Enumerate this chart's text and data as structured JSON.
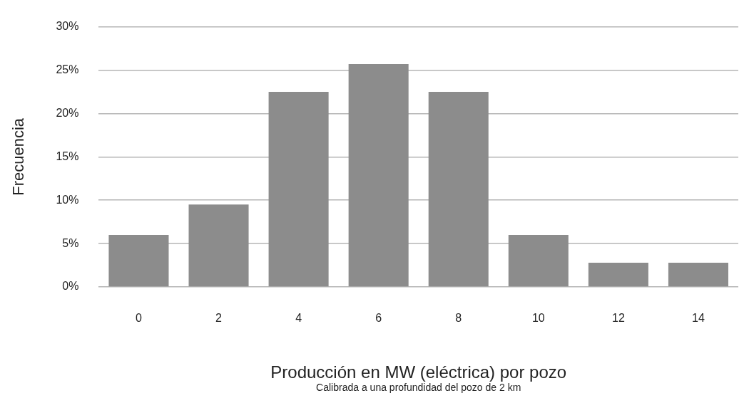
{
  "chart_data": {
    "type": "bar",
    "categories": [
      "0",
      "2",
      "4",
      "6",
      "8",
      "10",
      "12",
      "14"
    ],
    "values": [
      6,
      9.5,
      22.5,
      25.7,
      22.5,
      6,
      2.8,
      2.8
    ],
    "color": "#8c8c8c",
    "ylabel": "Frecuencia",
    "xlabel": "Producción en MW (eléctrica) por pozo",
    "annotations": [
      "Calibrada a una profundidad del pozo de 2 km"
    ],
    "ylim": [
      0,
      30
    ],
    "yticks": [
      {
        "value": 0,
        "label": "0%"
      },
      {
        "value": 5,
        "label": "5%"
      },
      {
        "value": 10,
        "label": "10%"
      },
      {
        "value": 15,
        "label": "15%"
      },
      {
        "value": 20,
        "label": "20%"
      },
      {
        "value": 25,
        "label": "25%"
      },
      {
        "value": 30,
        "label": "30%"
      }
    ],
    "grid": "y",
    "legend": false
  }
}
